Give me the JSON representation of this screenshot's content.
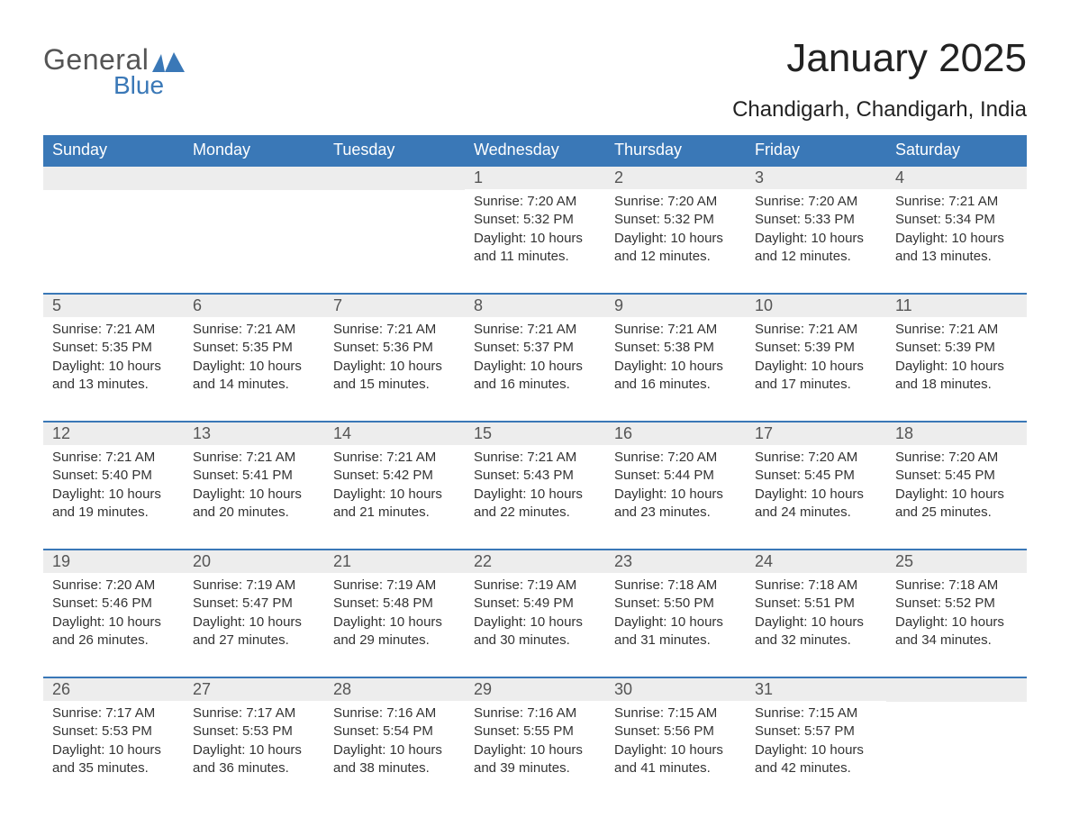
{
  "brand": {
    "word1": "General",
    "word2": "Blue",
    "icon_color": "#3a78b7"
  },
  "title": "January 2025",
  "location": "Chandigarh, Chandigarh, India",
  "colors": {
    "header_bg": "#3a78b7",
    "header_text": "#ffffff",
    "daynum_bg": "#ededed",
    "week_border": "#3a78b7",
    "body_text": "#333333",
    "page_bg": "#ffffff"
  },
  "fonts": {
    "title_size": 44,
    "location_size": 24,
    "weekday_size": 18,
    "daynum_size": 18,
    "body_size": 15
  },
  "weekdays": [
    "Sunday",
    "Monday",
    "Tuesday",
    "Wednesday",
    "Thursday",
    "Friday",
    "Saturday"
  ],
  "labels": {
    "sunrise": "Sunrise",
    "sunset": "Sunset",
    "daylight": "Daylight"
  },
  "weeks": [
    [
      null,
      null,
      null,
      {
        "n": "1",
        "sunrise": "7:20 AM",
        "sunset": "5:32 PM",
        "daylight": "10 hours and 11 minutes."
      },
      {
        "n": "2",
        "sunrise": "7:20 AM",
        "sunset": "5:32 PM",
        "daylight": "10 hours and 12 minutes."
      },
      {
        "n": "3",
        "sunrise": "7:20 AM",
        "sunset": "5:33 PM",
        "daylight": "10 hours and 12 minutes."
      },
      {
        "n": "4",
        "sunrise": "7:21 AM",
        "sunset": "5:34 PM",
        "daylight": "10 hours and 13 minutes."
      }
    ],
    [
      {
        "n": "5",
        "sunrise": "7:21 AM",
        "sunset": "5:35 PM",
        "daylight": "10 hours and 13 minutes."
      },
      {
        "n": "6",
        "sunrise": "7:21 AM",
        "sunset": "5:35 PM",
        "daylight": "10 hours and 14 minutes."
      },
      {
        "n": "7",
        "sunrise": "7:21 AM",
        "sunset": "5:36 PM",
        "daylight": "10 hours and 15 minutes."
      },
      {
        "n": "8",
        "sunrise": "7:21 AM",
        "sunset": "5:37 PM",
        "daylight": "10 hours and 16 minutes."
      },
      {
        "n": "9",
        "sunrise": "7:21 AM",
        "sunset": "5:38 PM",
        "daylight": "10 hours and 16 minutes."
      },
      {
        "n": "10",
        "sunrise": "7:21 AM",
        "sunset": "5:39 PM",
        "daylight": "10 hours and 17 minutes."
      },
      {
        "n": "11",
        "sunrise": "7:21 AM",
        "sunset": "5:39 PM",
        "daylight": "10 hours and 18 minutes."
      }
    ],
    [
      {
        "n": "12",
        "sunrise": "7:21 AM",
        "sunset": "5:40 PM",
        "daylight": "10 hours and 19 minutes."
      },
      {
        "n": "13",
        "sunrise": "7:21 AM",
        "sunset": "5:41 PM",
        "daylight": "10 hours and 20 minutes."
      },
      {
        "n": "14",
        "sunrise": "7:21 AM",
        "sunset": "5:42 PM",
        "daylight": "10 hours and 21 minutes."
      },
      {
        "n": "15",
        "sunrise": "7:21 AM",
        "sunset": "5:43 PM",
        "daylight": "10 hours and 22 minutes."
      },
      {
        "n": "16",
        "sunrise": "7:20 AM",
        "sunset": "5:44 PM",
        "daylight": "10 hours and 23 minutes."
      },
      {
        "n": "17",
        "sunrise": "7:20 AM",
        "sunset": "5:45 PM",
        "daylight": "10 hours and 24 minutes."
      },
      {
        "n": "18",
        "sunrise": "7:20 AM",
        "sunset": "5:45 PM",
        "daylight": "10 hours and 25 minutes."
      }
    ],
    [
      {
        "n": "19",
        "sunrise": "7:20 AM",
        "sunset": "5:46 PM",
        "daylight": "10 hours and 26 minutes."
      },
      {
        "n": "20",
        "sunrise": "7:19 AM",
        "sunset": "5:47 PM",
        "daylight": "10 hours and 27 minutes."
      },
      {
        "n": "21",
        "sunrise": "7:19 AM",
        "sunset": "5:48 PM",
        "daylight": "10 hours and 29 minutes."
      },
      {
        "n": "22",
        "sunrise": "7:19 AM",
        "sunset": "5:49 PM",
        "daylight": "10 hours and 30 minutes."
      },
      {
        "n": "23",
        "sunrise": "7:18 AM",
        "sunset": "5:50 PM",
        "daylight": "10 hours and 31 minutes."
      },
      {
        "n": "24",
        "sunrise": "7:18 AM",
        "sunset": "5:51 PM",
        "daylight": "10 hours and 32 minutes."
      },
      {
        "n": "25",
        "sunrise": "7:18 AM",
        "sunset": "5:52 PM",
        "daylight": "10 hours and 34 minutes."
      }
    ],
    [
      {
        "n": "26",
        "sunrise": "7:17 AM",
        "sunset": "5:53 PM",
        "daylight": "10 hours and 35 minutes."
      },
      {
        "n": "27",
        "sunrise": "7:17 AM",
        "sunset": "5:53 PM",
        "daylight": "10 hours and 36 minutes."
      },
      {
        "n": "28",
        "sunrise": "7:16 AM",
        "sunset": "5:54 PM",
        "daylight": "10 hours and 38 minutes."
      },
      {
        "n": "29",
        "sunrise": "7:16 AM",
        "sunset": "5:55 PM",
        "daylight": "10 hours and 39 minutes."
      },
      {
        "n": "30",
        "sunrise": "7:15 AM",
        "sunset": "5:56 PM",
        "daylight": "10 hours and 41 minutes."
      },
      {
        "n": "31",
        "sunrise": "7:15 AM",
        "sunset": "5:57 PM",
        "daylight": "10 hours and 42 minutes."
      },
      null
    ]
  ]
}
